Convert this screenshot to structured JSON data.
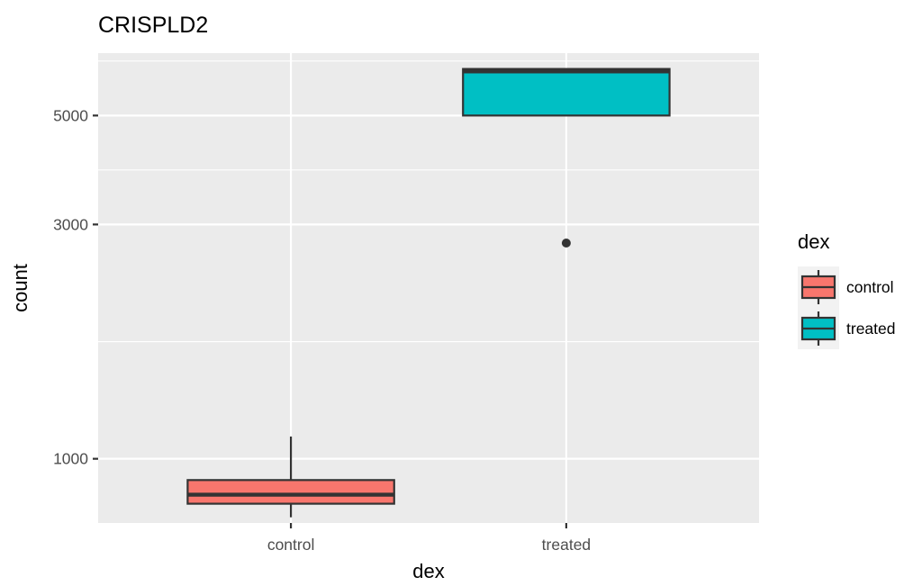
{
  "chart_data": {
    "type": "box",
    "title": "CRISPLD2",
    "xlabel": "dex",
    "ylabel": "count",
    "y_scale": "log10",
    "ylim": [
      740,
      6700
    ],
    "y_ticks": [
      1000,
      3000,
      5000
    ],
    "y_tick_labels": [
      "1000",
      "3000",
      "5000"
    ],
    "categories": [
      "control",
      "treated"
    ],
    "boxes": [
      {
        "category": "control",
        "min": 760,
        "q1": 810,
        "median": 845,
        "q3": 905,
        "max": 1110,
        "outliers": [],
        "fill": "#F8766D"
      },
      {
        "category": "treated",
        "min": 5000,
        "q1": 5000,
        "median": 6150,
        "q3": 6220,
        "max": 6220,
        "outliers": [
          2750
        ],
        "fill": "#00BFC4"
      }
    ],
    "legend": {
      "title": "dex",
      "position": "right",
      "entries": [
        {
          "label": "control",
          "fill": "#F8766D"
        },
        {
          "label": "treated",
          "fill": "#00BFC4"
        }
      ]
    },
    "grid": true,
    "colors": {
      "panel_bg": "#EBEBEB",
      "grid": "#FFFFFF",
      "outline": "#333333",
      "text": "#000000",
      "tick_text": "#4D4D4D"
    }
  }
}
